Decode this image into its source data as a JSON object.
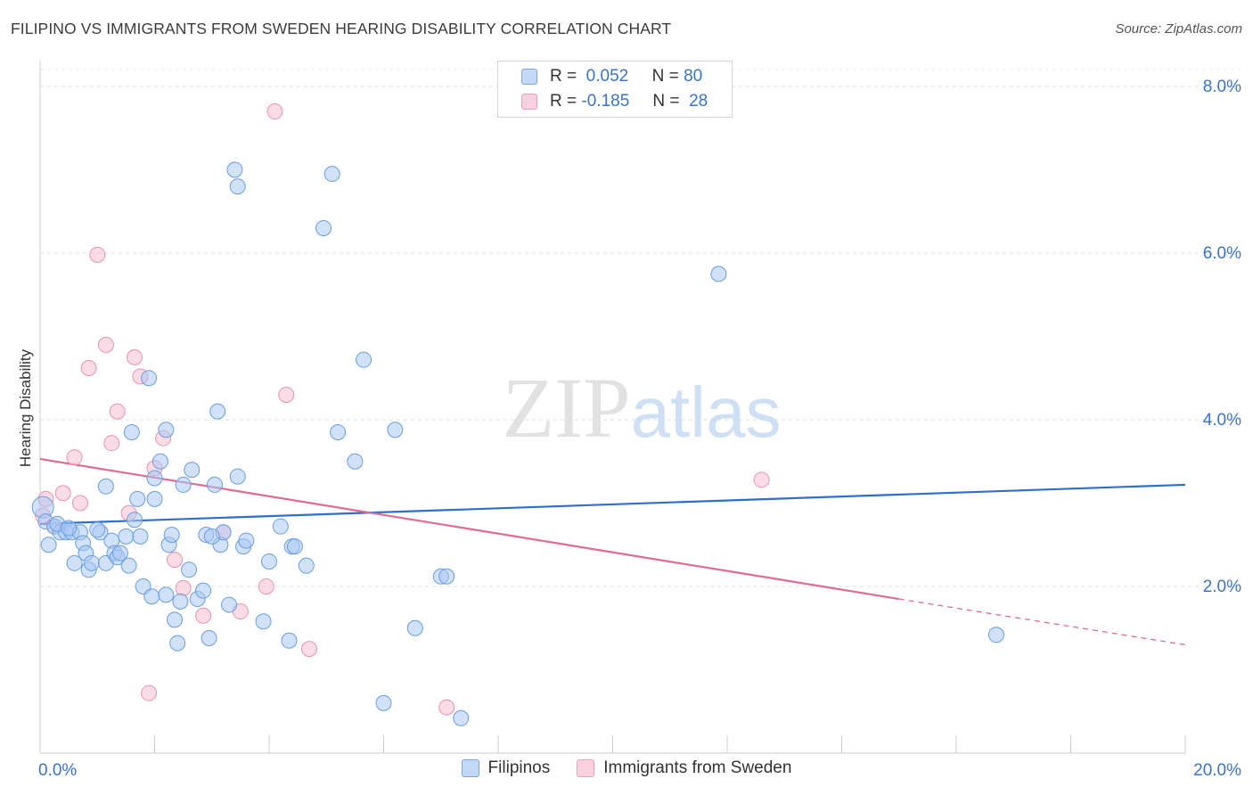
{
  "header": {
    "title": "FILIPINO VS IMMIGRANTS FROM SWEDEN HEARING DISABILITY CORRELATION CHART",
    "source": "Source: ZipAtlas.com"
  },
  "legend_box": [
    {
      "r_label": "R =",
      "r_value": "0.052",
      "n_label": "N =",
      "n_value": "80"
    },
    {
      "r_label": "R =",
      "r_value": "-0.185",
      "n_label": "N =",
      "n_value": "28"
    }
  ],
  "colors": {
    "blue_fill": "#a9c8f2",
    "blue_stroke": "#6a9ee0",
    "blue_line": "#2f6fc9",
    "pink_fill": "#f6bfd2",
    "pink_stroke": "#ea92b0",
    "pink_line": "#e06b96",
    "axis_text": "#3b73c9"
  },
  "chart_data": {
    "type": "scatter",
    "title": "FILIPINO VS IMMIGRANTS FROM SWEDEN HEARING DISABILITY CORRELATION CHART",
    "xlabel": "",
    "ylabel": "Hearing Disability",
    "xlim": [
      0,
      20
    ],
    "ylim": [
      0,
      8.2
    ],
    "x_tick_labels": [
      "0.0%",
      "20.0%"
    ],
    "y_ticks": [
      2,
      4,
      6,
      8
    ],
    "y_tick_labels": [
      "2.0%",
      "4.0%",
      "6.0%",
      "8.0%"
    ],
    "grid": true,
    "legend_position": "top-center",
    "watermark": "ZIPatlas",
    "series": [
      {
        "name": "Filipinos",
        "r": 0.052,
        "n": 80,
        "trend": {
          "x": [
            0,
            20
          ],
          "y": [
            2.75,
            3.22
          ]
        },
        "points": [
          [
            0.05,
            2.95
          ],
          [
            0.1,
            2.78
          ],
          [
            0.15,
            2.5
          ],
          [
            0.25,
            2.72
          ],
          [
            0.35,
            2.65
          ],
          [
            0.45,
            2.65
          ],
          [
            0.55,
            2.65
          ],
          [
            0.6,
            2.28
          ],
          [
            0.7,
            2.65
          ],
          [
            0.75,
            2.52
          ],
          [
            0.8,
            2.4
          ],
          [
            0.85,
            2.2
          ],
          [
            0.9,
            2.28
          ],
          [
            1.05,
            2.65
          ],
          [
            1.15,
            3.2
          ],
          [
            1.15,
            2.28
          ],
          [
            1.25,
            2.55
          ],
          [
            1.3,
            2.4
          ],
          [
            1.35,
            2.35
          ],
          [
            1.4,
            2.4
          ],
          [
            1.5,
            2.6
          ],
          [
            1.55,
            2.25
          ],
          [
            1.6,
            3.85
          ],
          [
            1.65,
            2.8
          ],
          [
            1.7,
            3.05
          ],
          [
            1.75,
            2.6
          ],
          [
            1.8,
            2.0
          ],
          [
            1.9,
            4.5
          ],
          [
            1.95,
            1.88
          ],
          [
            2.0,
            3.3
          ],
          [
            2.0,
            3.05
          ],
          [
            2.1,
            3.5
          ],
          [
            2.2,
            1.9
          ],
          [
            2.2,
            3.88
          ],
          [
            2.25,
            2.5
          ],
          [
            2.35,
            1.6
          ],
          [
            2.4,
            1.32
          ],
          [
            2.45,
            1.82
          ],
          [
            2.5,
            3.22
          ],
          [
            2.6,
            2.2
          ],
          [
            2.65,
            3.4
          ],
          [
            2.75,
            1.85
          ],
          [
            2.85,
            1.95
          ],
          [
            2.9,
            2.62
          ],
          [
            2.95,
            1.38
          ],
          [
            3.05,
            3.22
          ],
          [
            3.1,
            4.1
          ],
          [
            3.15,
            2.5
          ],
          [
            3.2,
            2.65
          ],
          [
            3.3,
            1.78
          ],
          [
            3.45,
            3.32
          ],
          [
            3.55,
            2.48
          ],
          [
            3.6,
            2.55
          ],
          [
            3.4,
            7.0
          ],
          [
            3.45,
            6.8
          ],
          [
            3.9,
            1.58
          ],
          [
            4.0,
            2.3
          ],
          [
            4.2,
            2.72
          ],
          [
            4.35,
            1.35
          ],
          [
            4.4,
            2.48
          ],
          [
            4.45,
            2.48
          ],
          [
            4.65,
            2.25
          ],
          [
            4.95,
            6.3
          ],
          [
            5.1,
            6.95
          ],
          [
            5.2,
            3.85
          ],
          [
            5.5,
            3.5
          ],
          [
            5.65,
            4.72
          ],
          [
            6.0,
            0.6
          ],
          [
            6.2,
            3.88
          ],
          [
            6.55,
            1.5
          ],
          [
            7.0,
            2.12
          ],
          [
            7.1,
            2.12
          ],
          [
            7.35,
            0.42
          ],
          [
            11.85,
            5.75
          ],
          [
            16.7,
            1.42
          ],
          [
            0.3,
            2.75
          ],
          [
            0.5,
            2.7
          ],
          [
            1.0,
            2.68
          ],
          [
            2.3,
            2.62
          ],
          [
            3.0,
            2.6
          ]
        ]
      },
      {
        "name": "Immigrants from Sweden",
        "r": -0.185,
        "n": 28,
        "trend_solid": {
          "x": [
            0,
            15
          ],
          "y": [
            3.53,
            1.85
          ]
        },
        "trend_dashed": {
          "x": [
            15,
            20
          ],
          "y": [
            1.85,
            1.3
          ]
        },
        "points": [
          [
            0.05,
            2.85
          ],
          [
            0.1,
            3.05
          ],
          [
            0.25,
            2.72
          ],
          [
            0.4,
            3.12
          ],
          [
            0.6,
            3.55
          ],
          [
            0.7,
            3.0
          ],
          [
            0.85,
            4.62
          ],
          [
            1.0,
            5.98
          ],
          [
            1.15,
            4.9
          ],
          [
            1.25,
            3.72
          ],
          [
            1.35,
            4.1
          ],
          [
            1.55,
            2.88
          ],
          [
            1.65,
            4.75
          ],
          [
            1.75,
            4.52
          ],
          [
            1.9,
            0.72
          ],
          [
            2.0,
            3.42
          ],
          [
            2.15,
            3.78
          ],
          [
            2.35,
            2.32
          ],
          [
            2.5,
            1.98
          ],
          [
            2.85,
            1.65
          ],
          [
            3.2,
            2.65
          ],
          [
            3.5,
            1.7
          ],
          [
            3.95,
            2.0
          ],
          [
            4.1,
            7.7
          ],
          [
            4.3,
            4.3
          ],
          [
            4.7,
            1.25
          ],
          [
            7.1,
            0.55
          ],
          [
            12.6,
            3.28
          ]
        ]
      }
    ]
  },
  "bottom_legend": [
    {
      "label": "Filipinos"
    },
    {
      "label": "Immigrants from Sweden"
    }
  ]
}
